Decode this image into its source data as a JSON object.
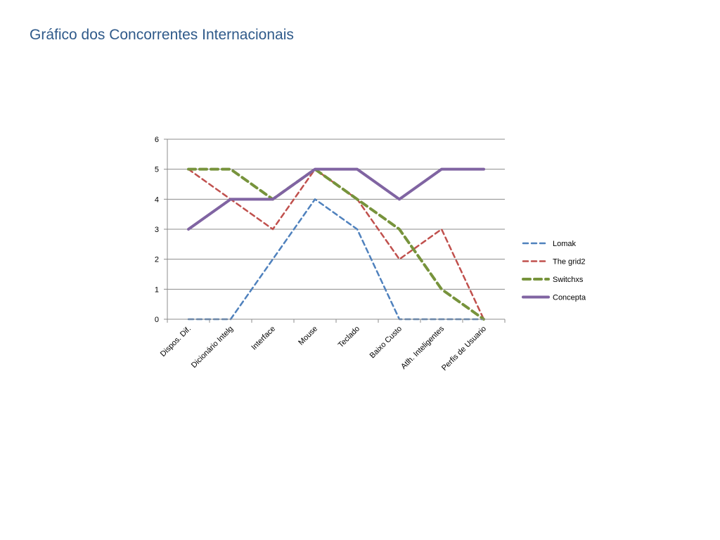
{
  "slide": {
    "title": "Gráfico dos Concorrentes Internacionais"
  },
  "chart_data": {
    "type": "line",
    "title": "",
    "xlabel": "",
    "ylabel": "",
    "categories": [
      "Dispos. Dif.",
      "Dicionário Intelg",
      "Interface",
      "Mouse",
      "Teclado",
      "Baixo Custo",
      "Atlh. Inteligentes",
      "Perfis de Usuario"
    ],
    "ylim": [
      0,
      6
    ],
    "yticks": [
      0,
      1,
      2,
      3,
      4,
      5,
      6
    ],
    "grid": true,
    "legend_position": "right",
    "series": [
      {
        "name": "Lomak",
        "values": [
          0,
          0,
          2,
          4,
          3,
          0,
          0,
          0
        ],
        "color": "#4f81bd",
        "style": "dashed"
      },
      {
        "name": "The grid2",
        "values": [
          5,
          4,
          3,
          5,
          4,
          2,
          3,
          0
        ],
        "color": "#c0504d",
        "style": "dashed"
      },
      {
        "name": "Switchxs",
        "values": [
          5,
          5,
          4,
          5,
          4,
          3,
          1,
          0
        ],
        "color": "#77933c",
        "style": "dashed-thick"
      },
      {
        "name": "Concepta",
        "values": [
          3,
          4,
          4,
          5,
          5,
          4,
          5,
          5
        ],
        "color": "#8064a2",
        "style": "solid-thick"
      }
    ]
  }
}
